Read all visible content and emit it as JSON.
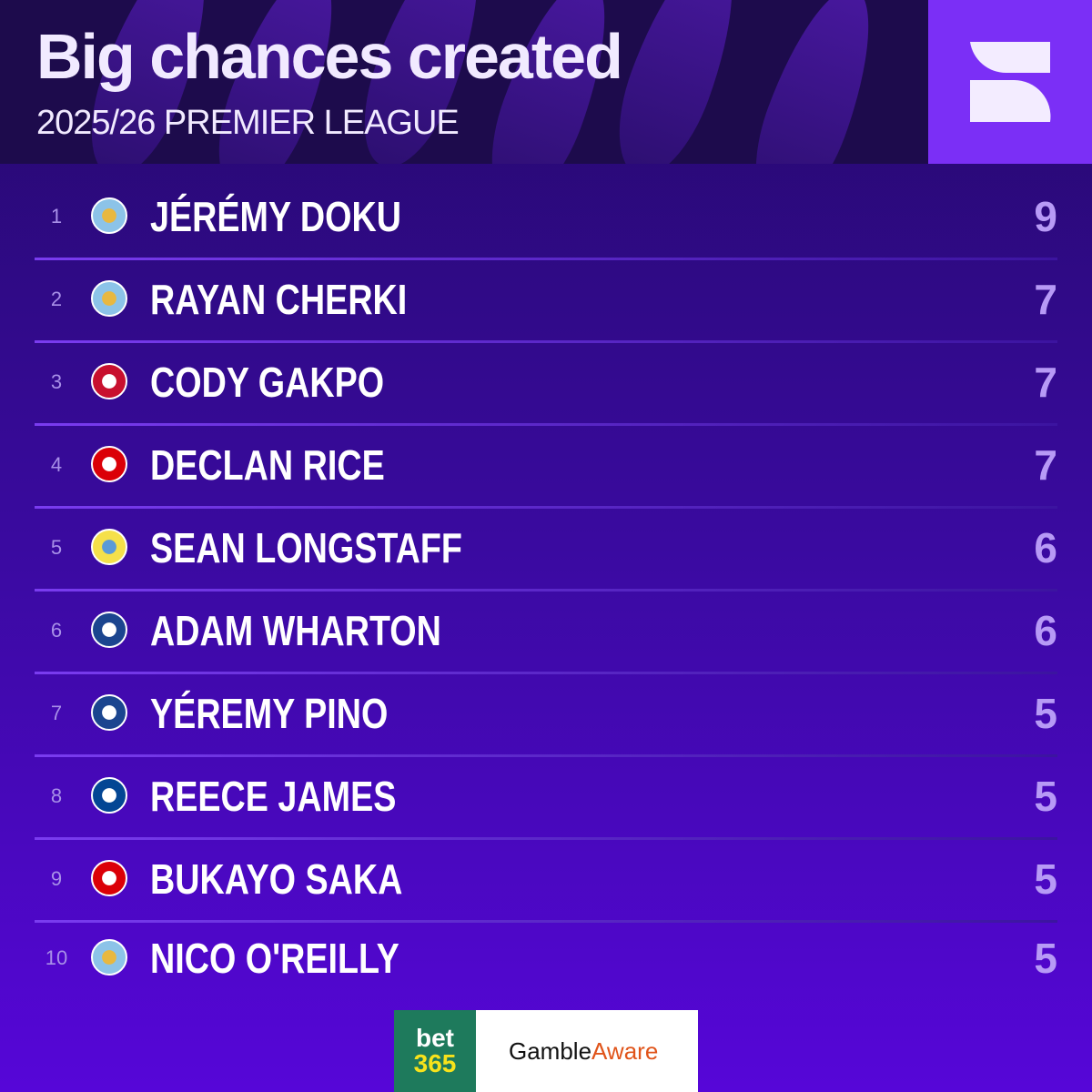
{
  "header": {
    "title": "Big chances created",
    "subtitle": "2025/26 PREMIER LEAGUE",
    "logo": "S"
  },
  "rows": [
    {
      "rank": "1",
      "name": "JÉRÉMY DOKU",
      "value": "9",
      "club_colors": [
        "#8cc3e8",
        "#e8b840"
      ]
    },
    {
      "rank": "2",
      "name": "RAYAN CHERKI",
      "value": "7",
      "club_colors": [
        "#8cc3e8",
        "#e8b840"
      ]
    },
    {
      "rank": "3",
      "name": "CODY GAKPO",
      "value": "7",
      "club_colors": [
        "#c8102e",
        "#ffffff"
      ]
    },
    {
      "rank": "4",
      "name": "DECLAN RICE",
      "value": "7",
      "club_colors": [
        "#db0007",
        "#ffffff"
      ]
    },
    {
      "rank": "5",
      "name": "SEAN LONGSTAFF",
      "value": "6",
      "club_colors": [
        "#f5e04a",
        "#5a9ad8"
      ]
    },
    {
      "rank": "6",
      "name": "ADAM WHARTON",
      "value": "6",
      "club_colors": [
        "#1b458f",
        "#ffffff"
      ]
    },
    {
      "rank": "7",
      "name": "YÉREMY PINO",
      "value": "5",
      "club_colors": [
        "#1b458f",
        "#ffffff"
      ]
    },
    {
      "rank": "8",
      "name": "REECE JAMES",
      "value": "5",
      "club_colors": [
        "#034694",
        "#ffffff"
      ]
    },
    {
      "rank": "9",
      "name": "BUKAYO SAKA",
      "value": "5",
      "club_colors": [
        "#db0007",
        "#ffffff"
      ]
    },
    {
      "rank": "10",
      "name": "NICO O'REILLY",
      "value": "5",
      "club_colors": [
        "#8cc3e8",
        "#e8b840"
      ]
    }
  ],
  "sponsor": {
    "bet_line1": "bet",
    "bet_line2": "365",
    "ga_part1": "Gamble",
    "ga_part2": "Aware"
  },
  "colors": {
    "header_bg": "#1d0b4c",
    "logo_bg": "#7b2ff6",
    "value": "#b79af6"
  }
}
